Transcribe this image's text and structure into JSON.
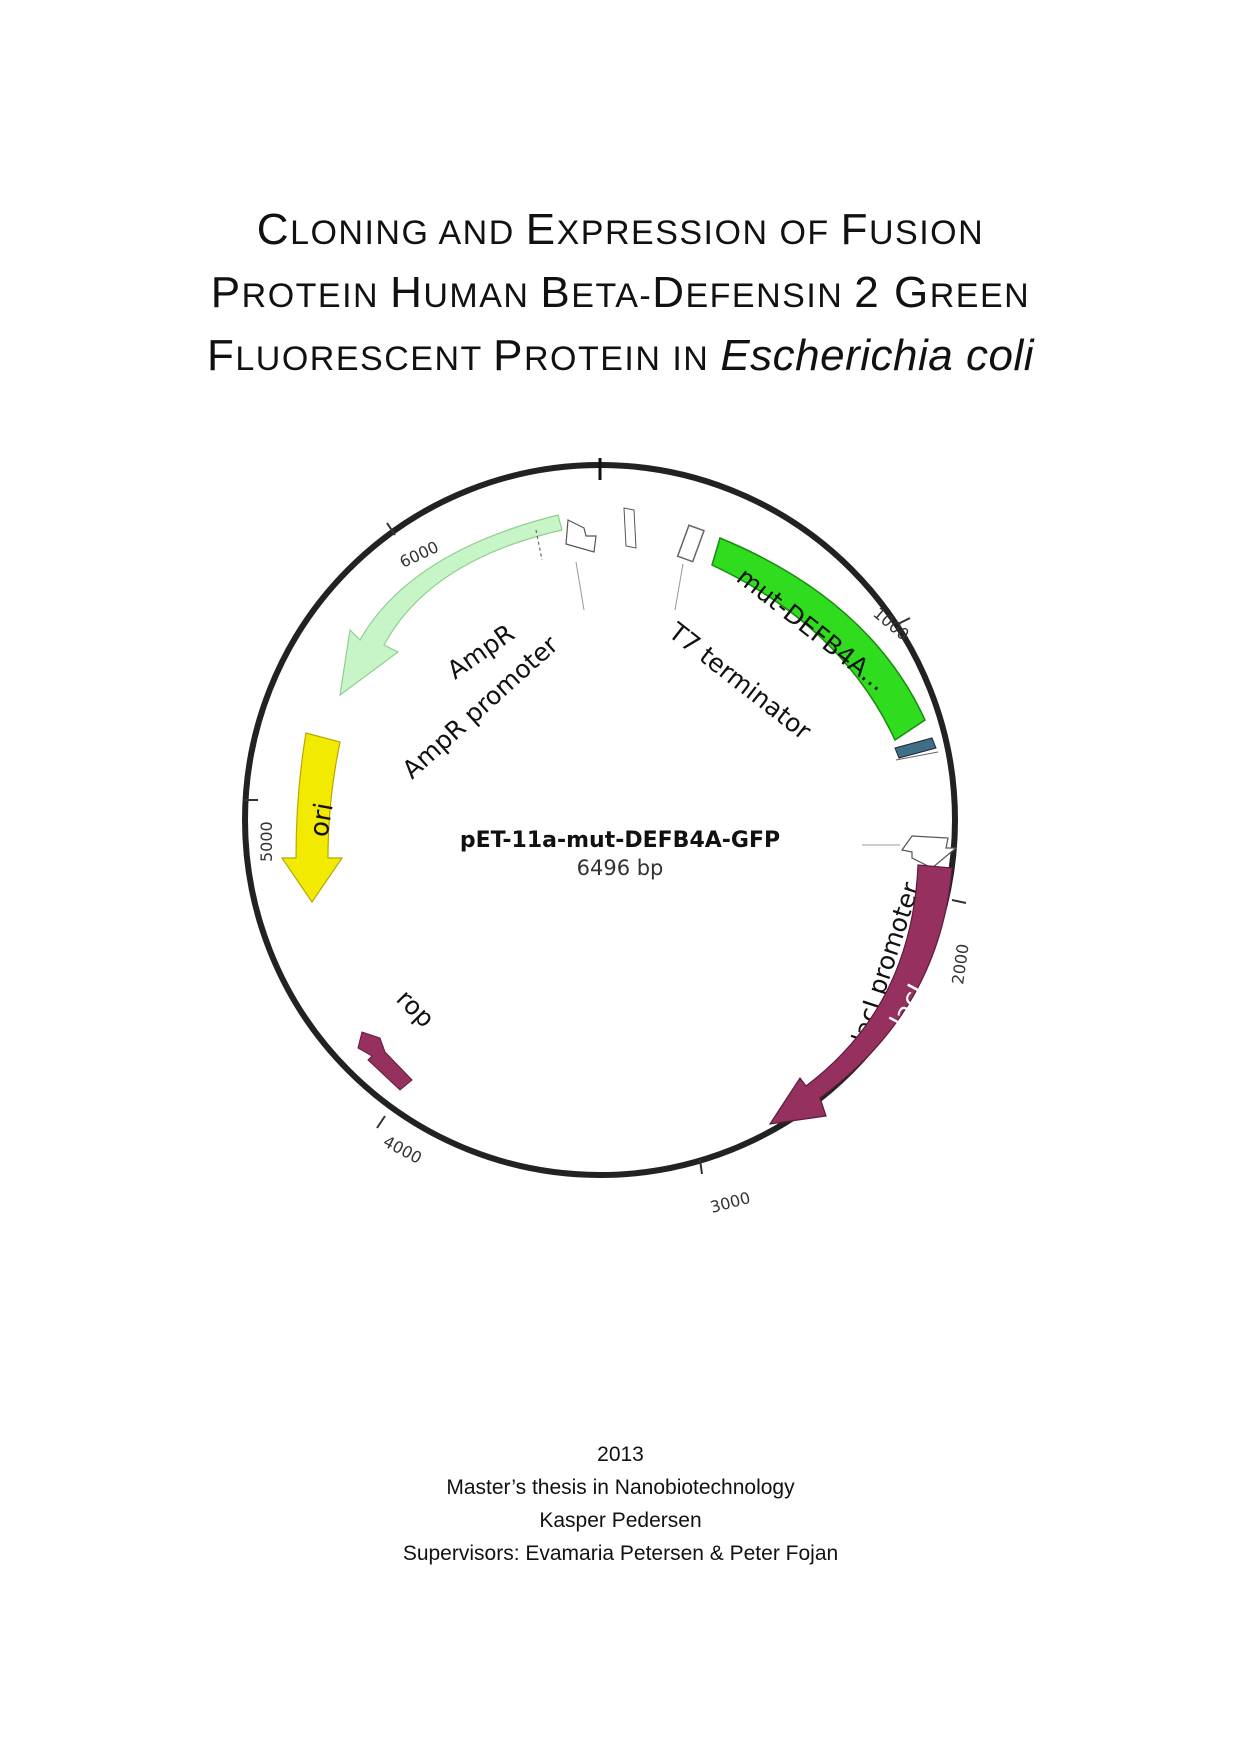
{
  "title": {
    "line1": [
      {
        "cap": "C",
        "rest": "LONING AND "
      },
      {
        "cap": "E",
        "rest": "XPRESSION OF "
      },
      {
        "cap": "F",
        "rest": "USION"
      }
    ],
    "line2": [
      {
        "cap": "P",
        "rest": "ROTEIN "
      },
      {
        "cap": "H",
        "rest": "UMAN "
      },
      {
        "cap": "B",
        "rest": "ETA-"
      },
      {
        "cap": "D",
        "rest": "EFENSIN "
      },
      {
        "cap": "2 G",
        "rest": "REEN"
      }
    ],
    "line3": [
      {
        "cap": "F",
        "rest": "LUORESCENT "
      },
      {
        "cap": "P",
        "rest": "ROTEIN IN "
      }
    ],
    "organism": "Escherichia coli"
  },
  "plasmid": {
    "name": "pET-11a-mut-DEFB4A-GFP",
    "size": "6496 bp",
    "ticks": [
      "1000",
      "2000",
      "3000",
      "4000",
      "5000",
      "6000"
    ],
    "features": {
      "mut_defb4a": {
        "label": "mut-DEFB4A...",
        "color": "#2fdc1e"
      },
      "lacI": {
        "label": "lacI",
        "color": "#96305f"
      },
      "rop": {
        "label": "rop",
        "color": "#96305f"
      },
      "ori": {
        "label": "ori",
        "color": "#f2ea00"
      },
      "ampR": {
        "label": "AmpR",
        "color": "#c8f5c8"
      },
      "ampR_promoter": {
        "label": "AmpR promoter"
      },
      "t7_terminator": {
        "label": "T7 terminator"
      },
      "lacI_promoter": {
        "label": "lacI promoter"
      },
      "gfp_fragment": {
        "color": "#3f6f86"
      }
    }
  },
  "footer": {
    "year": "2013",
    "thesis": "Master’s thesis in Nanobiotechnology",
    "author": "Kasper Pedersen",
    "supervisors": "Supervisors: Evamaria Petersen & Peter Fojan"
  }
}
